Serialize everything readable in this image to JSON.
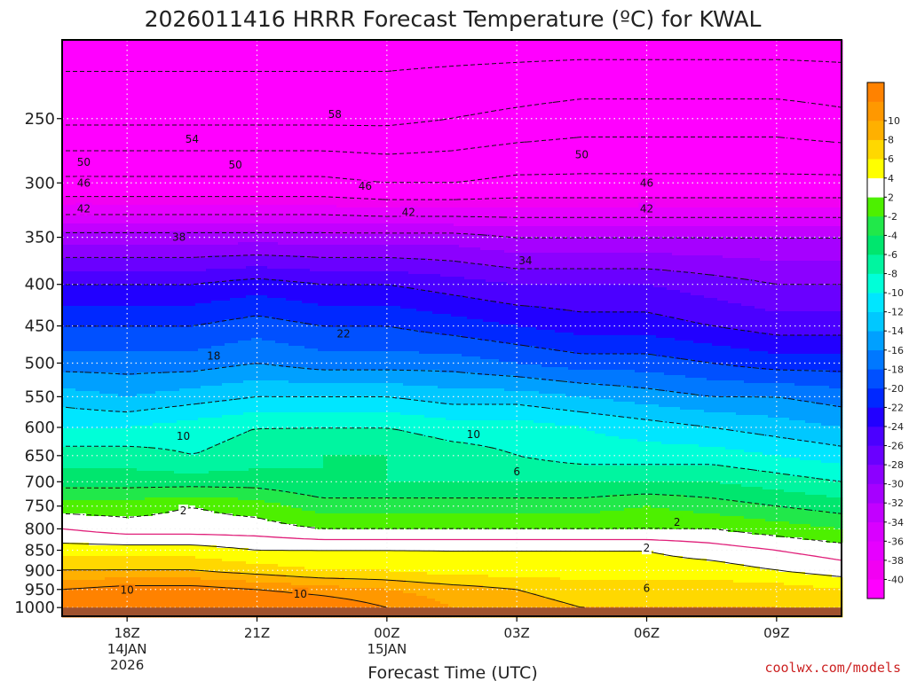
{
  "chart_data": {
    "type": "heatmap",
    "title": "2026011416 HRRR Forecast Temperature (ºC) for KWAL",
    "xlabel": "Forecast Time (UTC)",
    "ylabel": "",
    "credit": "coolwx.com/models",
    "x_range_hours_from_18Z": [
      -1.5,
      16.5
    ],
    "x_ticks": [
      {
        "value": 0,
        "lines": [
          "18Z",
          "14JAN",
          "2026"
        ]
      },
      {
        "value": 3,
        "lines": [
          "21Z"
        ]
      },
      {
        "value": 6,
        "lines": [
          "00Z",
          "15JAN"
        ]
      },
      {
        "value": 9,
        "lines": [
          "03Z"
        ]
      },
      {
        "value": 12,
        "lines": [
          "06Z"
        ]
      },
      {
        "value": 15,
        "lines": [
          "09Z"
        ]
      }
    ],
    "y_axis": {
      "type": "log",
      "units": "hPa",
      "range": [
        1025,
        200
      ],
      "ticks": [
        250,
        300,
        350,
        400,
        450,
        500,
        550,
        600,
        650,
        700,
        750,
        800,
        850,
        900,
        950,
        1000
      ]
    },
    "grid": true,
    "ground_level_hPa": 1000,
    "colorbar": {
      "levels": [
        -42,
        -40,
        -38,
        -36,
        -34,
        -32,
        -30,
        -28,
        -26,
        -24,
        -22,
        -20,
        -18,
        -16,
        -14,
        -12,
        -10,
        -8,
        -6,
        -4,
        -2,
        2,
        4,
        6,
        8,
        10,
        12
      ],
      "tick_labels": [
        "-40",
        "-38",
        "-36",
        "-34",
        "-32",
        "-30",
        "-28",
        "-26",
        "-24",
        "-22",
        "-20",
        "-18",
        "-16",
        "-14",
        "-12",
        "-10",
        "-8",
        "-6",
        "-4",
        "-2",
        "2",
        "4",
        "6",
        "8",
        "10"
      ],
      "colors": [
        "#ff00ff",
        "#f200f2",
        "#e600ff",
        "#d900ff",
        "#c200ff",
        "#a600ff",
        "#8c00ff",
        "#6a00ff",
        "#4b00ff",
        "#2200ff",
        "#0028ff",
        "#0050ff",
        "#0078ff",
        "#00a0ff",
        "#00c8ff",
        "#00e6ff",
        "#00ffd8",
        "#00f5a0",
        "#00e66e",
        "#21e84a",
        "#4df000",
        "#ffffff",
        "#ffff00",
        "#ffd800",
        "#ffb000",
        "#ff9800",
        "#ff8200"
      ]
    },
    "temperature_profiles_degC": {
      "x": [
        -1.5,
        0,
        1.5,
        3,
        4.5,
        6,
        7.5,
        9,
        10.5,
        12,
        13.5,
        15,
        16.5
      ],
      "pressure_hPa": [
        1000,
        950,
        900,
        850,
        800,
        750,
        700,
        650,
        600,
        550,
        500,
        450,
        400,
        350,
        300,
        250,
        200
      ],
      "values": [
        [
          11,
          12,
          12,
          13,
          12,
          10,
          8,
          7,
          6,
          6,
          6,
          6,
          5
        ],
        [
          10,
          11,
          11,
          10,
          9,
          8,
          7,
          6,
          5,
          5,
          5,
          5,
          4
        ],
        [
          6,
          6,
          6,
          5,
          4,
          4,
          3,
          3,
          3,
          3,
          3,
          2,
          1
        ],
        [
          3,
          3,
          3,
          2,
          2,
          2,
          2,
          2,
          2,
          2,
          1,
          0,
          -1
        ],
        [
          0,
          -1,
          -1,
          -1,
          -2,
          -2,
          -2,
          -2,
          -2,
          -2,
          -2,
          -3,
          -4
        ],
        [
          -3,
          -3,
          -2,
          -3,
          -5,
          -5,
          -5,
          -5,
          -5,
          -4,
          -5,
          -6,
          -7
        ],
        [
          -7,
          -7,
          -7,
          -7,
          -8,
          -8,
          -8,
          -8,
          -8,
          -8,
          -8,
          -9,
          -10
        ],
        [
          -9,
          -9,
          -10,
          -9,
          -8,
          -8,
          -9,
          -10,
          -11,
          -11,
          -11,
          -12,
          -13
        ],
        [
          -12,
          -12,
          -11,
          -10,
          -10,
          -10,
          -11,
          -11,
          -12,
          -13,
          -14,
          -15,
          -16
        ],
        [
          -15,
          -16,
          -15,
          -14,
          -14,
          -14,
          -15,
          -15,
          -16,
          -17,
          -18,
          -18,
          -19
        ],
        [
          -19,
          -19,
          -19,
          -18,
          -19,
          -19,
          -19,
          -20,
          -21,
          -21,
          -22,
          -23,
          -23
        ],
        [
          -22,
          -22,
          -22,
          -21,
          -22,
          -22,
          -23,
          -24,
          -25,
          -25,
          -26,
          -27,
          -27
        ],
        [
          -26,
          -26,
          -26,
          -25,
          -26,
          -26,
          -27,
          -28,
          -28,
          -28,
          -29,
          -30,
          -30
        ],
        [
          -33,
          -33,
          -33,
          -33,
          -33,
          -33,
          -33,
          -34,
          -34,
          -34,
          -34,
          -34,
          -34
        ],
        [
          -45,
          -45,
          -45,
          -45,
          -45,
          -46,
          -46,
          -45,
          -45,
          -45,
          -45,
          -45,
          -45
        ],
        [
          -55,
          -55,
          -55,
          -55,
          -55,
          -55,
          -54,
          -53,
          -52,
          -52,
          -52,
          -52,
          -53
        ],
        [
          -60,
          -60,
          -60,
          -60,
          -60,
          -60,
          -60,
          -60,
          -60,
          -60,
          -60,
          -60,
          -60
        ]
      ]
    },
    "contour_labels": [
      {
        "text": "58",
        "x": 4.8,
        "p": 247
      },
      {
        "text": "54",
        "x": 1.5,
        "p": 265
      },
      {
        "text": "50",
        "x": -1.0,
        "p": 283
      },
      {
        "text": "50",
        "x": 2.5,
        "p": 285
      },
      {
        "text": "50",
        "x": 10.5,
        "p": 277
      },
      {
        "text": "46",
        "x": -1.0,
        "p": 300
      },
      {
        "text": "46",
        "x": 5.5,
        "p": 303
      },
      {
        "text": "46",
        "x": 12.0,
        "p": 300
      },
      {
        "text": "42",
        "x": -1.0,
        "p": 323
      },
      {
        "text": "42",
        "x": 6.5,
        "p": 326
      },
      {
        "text": "42",
        "x": 12.0,
        "p": 323
      },
      {
        "text": "38",
        "x": 1.2,
        "p": 350
      },
      {
        "text": "34",
        "x": 9.2,
        "p": 374
      },
      {
        "text": "22",
        "x": 5.0,
        "p": 460
      },
      {
        "text": "18",
        "x": 2.0,
        "p": 490
      },
      {
        "text": "10",
        "x": 1.3,
        "p": 615
      },
      {
        "text": "10",
        "x": 8.0,
        "p": 612
      },
      {
        "text": "6",
        "x": 9.0,
        "p": 680
      },
      {
        "text": "2",
        "x": 1.3,
        "p": 760
      },
      {
        "text": "2",
        "x": 12.7,
        "p": 785
      },
      {
        "text": "2",
        "x": 12.0,
        "p": 845
      },
      {
        "text": "10",
        "x": 0.0,
        "p": 952
      },
      {
        "text": "10",
        "x": 4.0,
        "p": 962
      },
      {
        "text": "6",
        "x": 12.0,
        "p": 947
      }
    ]
  }
}
